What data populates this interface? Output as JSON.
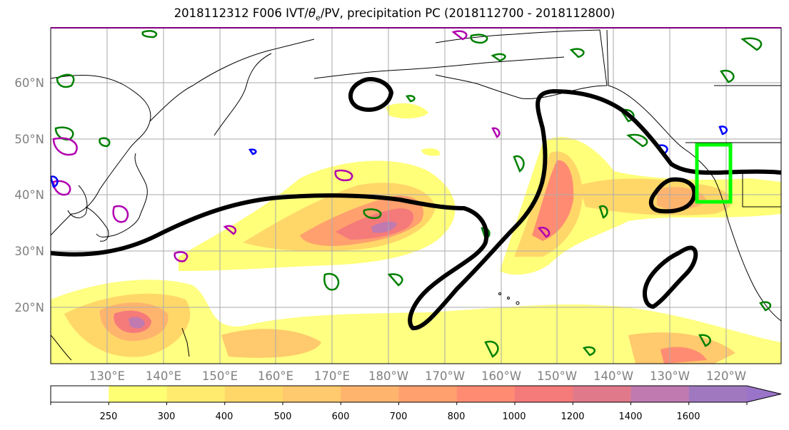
{
  "title": {
    "prefix": "2018112312 F006 IVT/",
    "theta": "θ",
    "theta_sub": "e",
    "suffix": "/PV, precipitation PC (2018112700 - 2018112800)"
  },
  "lat_labels": [
    "60°N",
    "50°N",
    "40°N",
    "30°N",
    "20°N"
  ],
  "lon_labels": [
    "130°E",
    "140°E",
    "150°E",
    "160°E",
    "170°E",
    "180°W",
    "170°W",
    "160°W",
    "150°W",
    "140°W",
    "130°W",
    "120°W"
  ],
  "colorbar": {
    "levels": [
      "250",
      "300",
      "400",
      "500",
      "600",
      "700",
      "800",
      "1000",
      "1200",
      "1400",
      "1600"
    ],
    "colors": [
      "#ffffff",
      "#ffff73",
      "#ffeb6e",
      "#ffd769",
      "#ffc96d",
      "#ffb46e",
      "#ffa06e",
      "#ff8c72",
      "#f57a7a",
      "#e07a8a",
      "#c07ab0",
      "#a078c0",
      "#9a74c8"
    ]
  },
  "colors": {
    "theta_e_contour": "#000000",
    "pv_green": "#008000",
    "pv_magenta": "#b000b0",
    "pv_blue": "#0000ff",
    "target_box": "#00ff00",
    "graticule": "#aaaaaa",
    "coastline": "#000000"
  }
}
